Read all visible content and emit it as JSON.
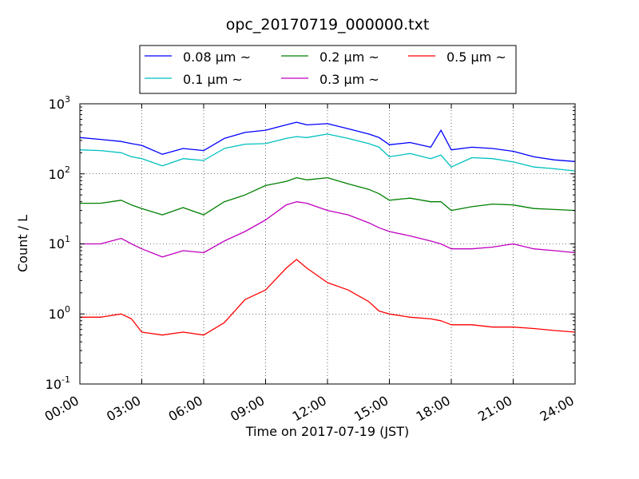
{
  "chart_data": {
    "type": "line",
    "title": "opc_20170719_000000.txt",
    "xlabel": "Time on 2017-07-19 (JST)",
    "ylabel": "Count / L",
    "y_scale": "log",
    "ylim_exponent": [
      -1,
      3
    ],
    "y_tick_bases": [
      "10",
      "10",
      "10",
      "10",
      "10"
    ],
    "y_tick_exponents": [
      "-1",
      "0",
      "1",
      "2",
      "3"
    ],
    "xlim_hours": [
      0,
      24
    ],
    "x_tick_labels": [
      "00:00",
      "03:00",
      "06:00",
      "09:00",
      "12:00",
      "15:00",
      "18:00",
      "21:00",
      "24:00"
    ],
    "grid": true,
    "legend_position": "top, above plot (3 columns)",
    "x_hours": [
      0,
      1,
      2,
      2.5,
      3,
      4,
      5,
      6,
      7,
      8,
      9,
      10,
      10.5,
      11,
      12,
      13,
      14,
      14.5,
      15,
      16,
      17,
      17.5,
      18,
      19,
      20,
      21,
      22,
      23,
      24
    ],
    "series": [
      {
        "name": "0.08 μm ~",
        "color": "#0000ff",
        "values": [
          330,
          310,
          290,
          270,
          255,
          190,
          230,
          215,
          320,
          390,
          420,
          500,
          545,
          500,
          520,
          440,
          370,
          330,
          260,
          280,
          240,
          420,
          220,
          240,
          230,
          210,
          175,
          158,
          150
        ]
      },
      {
        "name": "0.1 μm ~",
        "color": "#00bfbf",
        "values": [
          220,
          215,
          200,
          175,
          165,
          130,
          165,
          155,
          230,
          265,
          270,
          320,
          340,
          330,
          370,
          320,
          270,
          240,
          175,
          195,
          165,
          185,
          125,
          170,
          165,
          148,
          125,
          118,
          110
        ]
      },
      {
        "name": "0.2 μm ~",
        "color": "#008000",
        "values": [
          38,
          38,
          42,
          36,
          32,
          26,
          33,
          26,
          40,
          50,
          68,
          78,
          88,
          82,
          88,
          72,
          60,
          52,
          42,
          45,
          40,
          40,
          30,
          34,
          37,
          36,
          32,
          31,
          30
        ]
      },
      {
        "name": "0.3 μm ~",
        "color": "#bf00bf",
        "values": [
          10,
          10,
          12,
          10,
          8.5,
          6.5,
          8,
          7.5,
          11,
          15,
          22,
          36,
          40,
          38,
          30,
          26,
          20,
          17,
          15,
          13,
          11,
          10,
          8.5,
          8.5,
          9,
          10,
          8.5,
          8,
          7.5
        ]
      },
      {
        "name": "0.5 μm ~",
        "color": "#ff0000",
        "values": [
          0.9,
          0.9,
          1.0,
          0.85,
          0.55,
          0.5,
          0.55,
          0.5,
          0.75,
          1.6,
          2.2,
          4.5,
          6,
          4.5,
          2.8,
          2.2,
          1.5,
          1.1,
          1.0,
          0.9,
          0.85,
          0.8,
          0.7,
          0.7,
          0.65,
          0.65,
          0.62,
          0.58,
          0.55
        ]
      }
    ]
  }
}
